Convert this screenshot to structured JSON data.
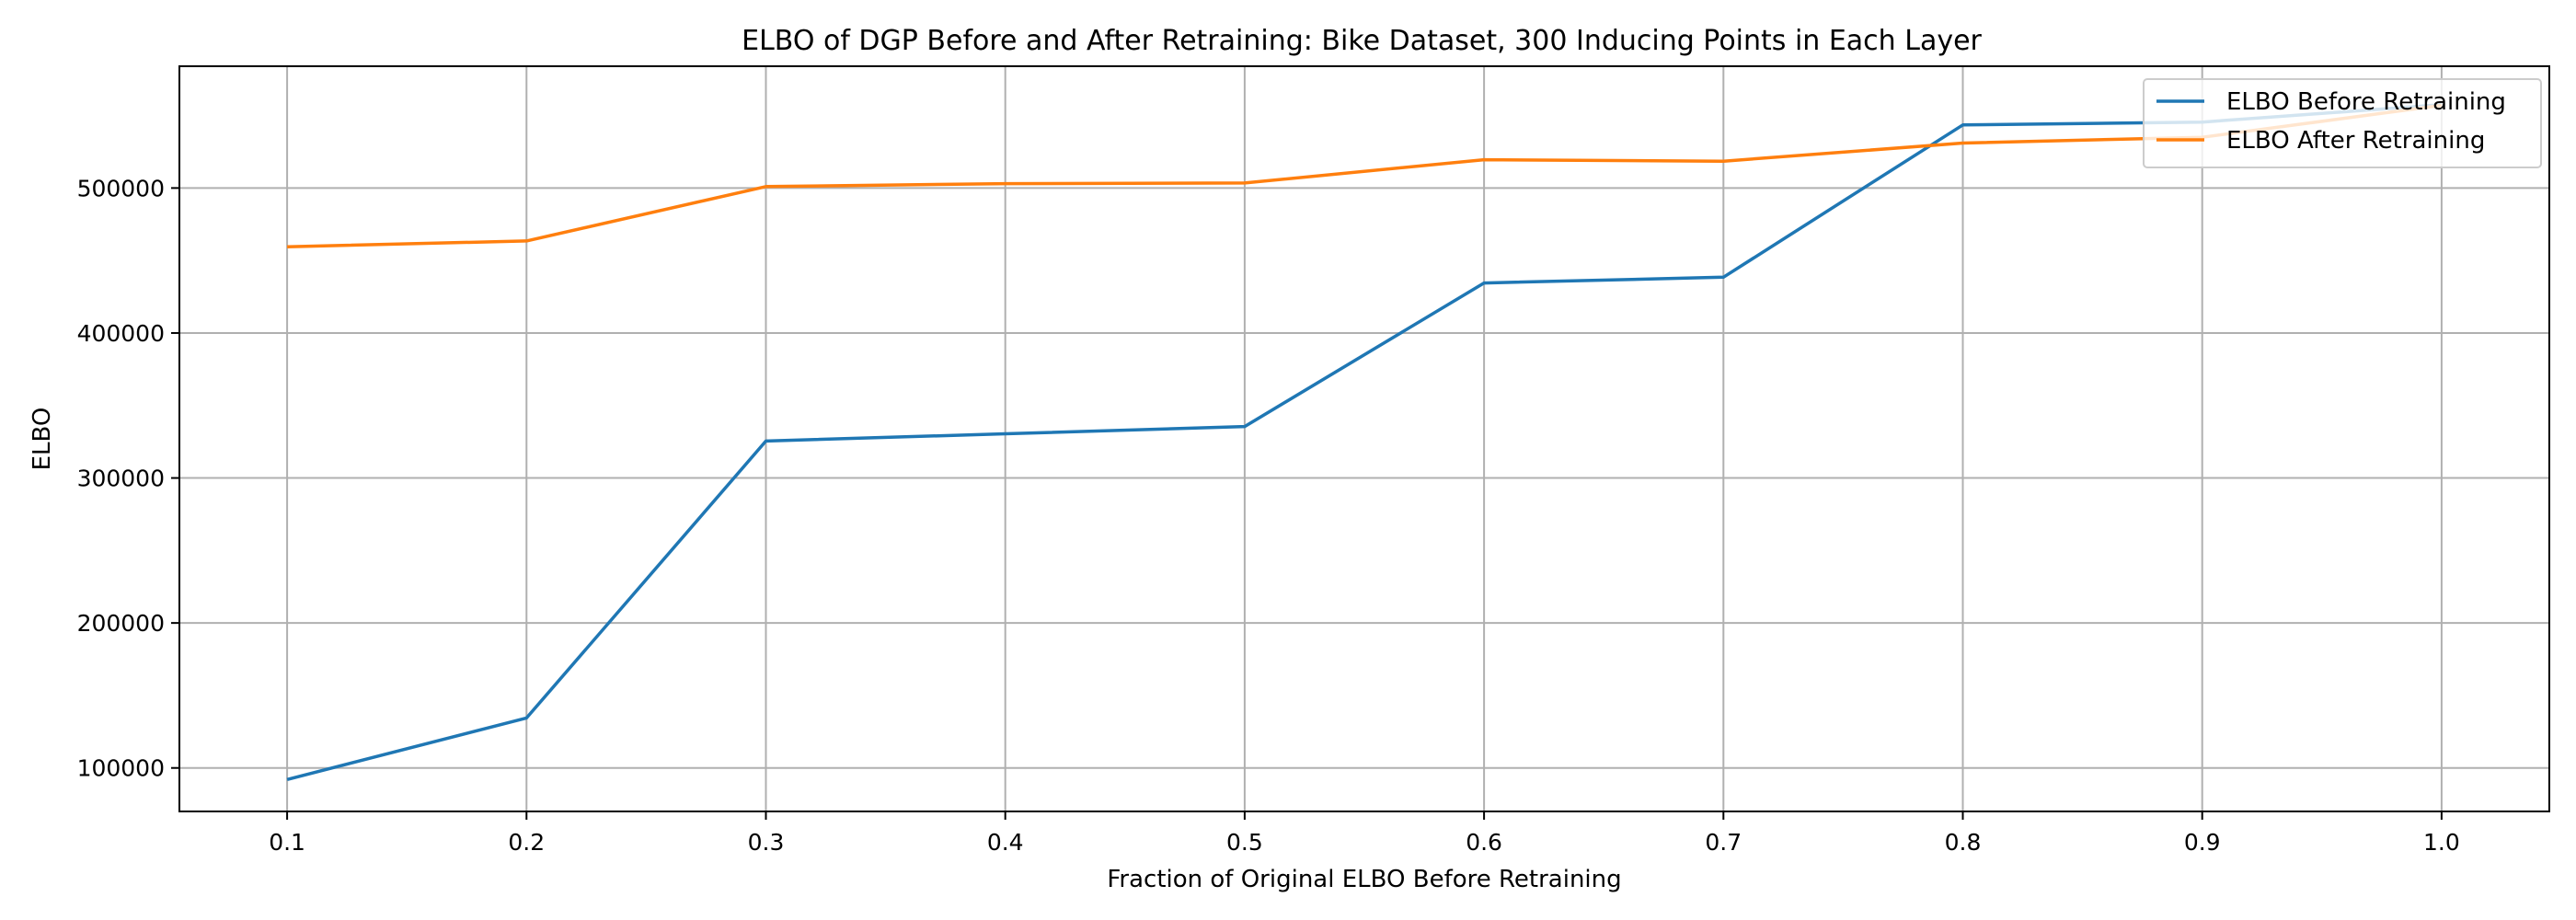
{
  "chart_data": {
    "type": "line",
    "title": "ELBO of DGP Before and After Retraining: Bike Dataset, 300 Inducing Points in Each Layer",
    "xlabel": "Fraction of Original ELBO Before Retraining",
    "ylabel": "ELBO",
    "x": [
      0.1,
      0.2,
      0.3,
      0.4,
      0.5,
      0.6,
      0.7,
      0.8,
      0.9,
      1.0
    ],
    "x_ticks": [
      "0.1",
      "0.2",
      "0.3",
      "0.4",
      "0.5",
      "0.6",
      "0.7",
      "0.8",
      "0.9",
      "1.0"
    ],
    "xlim": [
      0.055,
      1.045
    ],
    "y_ticks": [
      "100000",
      "200000",
      "300000",
      "400000",
      "500000"
    ],
    "ylim": [
      70000,
      584000
    ],
    "grid": true,
    "legend_position": "top-right",
    "series": [
      {
        "name": "ELBO Before Retraining",
        "color": "#1f77b4",
        "values": [
          92000,
          134500,
          325500,
          330500,
          335500,
          434500,
          438500,
          543500,
          545500,
          557500
        ]
      },
      {
        "name": "ELBO After Retraining",
        "color": "#ff7f0e",
        "values": [
          459500,
          463500,
          501000,
          503000,
          503500,
          519500,
          518500,
          531000,
          535000,
          557000
        ]
      }
    ]
  }
}
